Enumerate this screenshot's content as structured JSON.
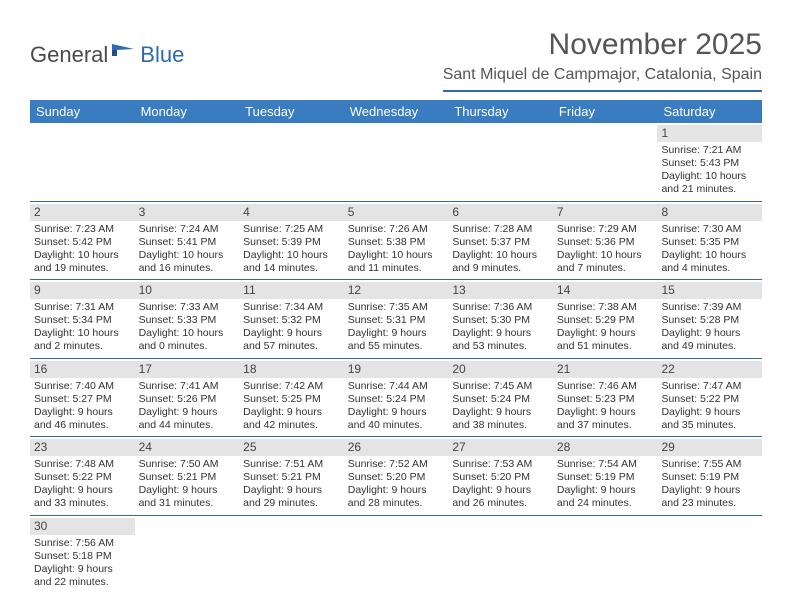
{
  "logo": {
    "textA": "General",
    "textB": "Blue"
  },
  "header": {
    "month_title": "November 2025",
    "location": "Sant Miquel de Campmajor, Catalonia, Spain"
  },
  "colors": {
    "header_bar": "#3a7cc0",
    "accent_line": "#2f6aad",
    "day_num_bg": "#e4e4e4",
    "text": "#333333",
    "title_text": "#555555"
  },
  "weekdays": [
    "Sunday",
    "Monday",
    "Tuesday",
    "Wednesday",
    "Thursday",
    "Friday",
    "Saturday"
  ],
  "weeks": [
    [
      null,
      null,
      null,
      null,
      null,
      null,
      {
        "n": "1",
        "sr": "Sunrise: 7:21 AM",
        "ss": "Sunset: 5:43 PM",
        "dl1": "Daylight: 10 hours",
        "dl2": "and 21 minutes."
      }
    ],
    [
      {
        "n": "2",
        "sr": "Sunrise: 7:23 AM",
        "ss": "Sunset: 5:42 PM",
        "dl1": "Daylight: 10 hours",
        "dl2": "and 19 minutes."
      },
      {
        "n": "3",
        "sr": "Sunrise: 7:24 AM",
        "ss": "Sunset: 5:41 PM",
        "dl1": "Daylight: 10 hours",
        "dl2": "and 16 minutes."
      },
      {
        "n": "4",
        "sr": "Sunrise: 7:25 AM",
        "ss": "Sunset: 5:39 PM",
        "dl1": "Daylight: 10 hours",
        "dl2": "and 14 minutes."
      },
      {
        "n": "5",
        "sr": "Sunrise: 7:26 AM",
        "ss": "Sunset: 5:38 PM",
        "dl1": "Daylight: 10 hours",
        "dl2": "and 11 minutes."
      },
      {
        "n": "6",
        "sr": "Sunrise: 7:28 AM",
        "ss": "Sunset: 5:37 PM",
        "dl1": "Daylight: 10 hours",
        "dl2": "and 9 minutes."
      },
      {
        "n": "7",
        "sr": "Sunrise: 7:29 AM",
        "ss": "Sunset: 5:36 PM",
        "dl1": "Daylight: 10 hours",
        "dl2": "and 7 minutes."
      },
      {
        "n": "8",
        "sr": "Sunrise: 7:30 AM",
        "ss": "Sunset: 5:35 PM",
        "dl1": "Daylight: 10 hours",
        "dl2": "and 4 minutes."
      }
    ],
    [
      {
        "n": "9",
        "sr": "Sunrise: 7:31 AM",
        "ss": "Sunset: 5:34 PM",
        "dl1": "Daylight: 10 hours",
        "dl2": "and 2 minutes."
      },
      {
        "n": "10",
        "sr": "Sunrise: 7:33 AM",
        "ss": "Sunset: 5:33 PM",
        "dl1": "Daylight: 10 hours",
        "dl2": "and 0 minutes."
      },
      {
        "n": "11",
        "sr": "Sunrise: 7:34 AM",
        "ss": "Sunset: 5:32 PM",
        "dl1": "Daylight: 9 hours",
        "dl2": "and 57 minutes."
      },
      {
        "n": "12",
        "sr": "Sunrise: 7:35 AM",
        "ss": "Sunset: 5:31 PM",
        "dl1": "Daylight: 9 hours",
        "dl2": "and 55 minutes."
      },
      {
        "n": "13",
        "sr": "Sunrise: 7:36 AM",
        "ss": "Sunset: 5:30 PM",
        "dl1": "Daylight: 9 hours",
        "dl2": "and 53 minutes."
      },
      {
        "n": "14",
        "sr": "Sunrise: 7:38 AM",
        "ss": "Sunset: 5:29 PM",
        "dl1": "Daylight: 9 hours",
        "dl2": "and 51 minutes."
      },
      {
        "n": "15",
        "sr": "Sunrise: 7:39 AM",
        "ss": "Sunset: 5:28 PM",
        "dl1": "Daylight: 9 hours",
        "dl2": "and 49 minutes."
      }
    ],
    [
      {
        "n": "16",
        "sr": "Sunrise: 7:40 AM",
        "ss": "Sunset: 5:27 PM",
        "dl1": "Daylight: 9 hours",
        "dl2": "and 46 minutes."
      },
      {
        "n": "17",
        "sr": "Sunrise: 7:41 AM",
        "ss": "Sunset: 5:26 PM",
        "dl1": "Daylight: 9 hours",
        "dl2": "and 44 minutes."
      },
      {
        "n": "18",
        "sr": "Sunrise: 7:42 AM",
        "ss": "Sunset: 5:25 PM",
        "dl1": "Daylight: 9 hours",
        "dl2": "and 42 minutes."
      },
      {
        "n": "19",
        "sr": "Sunrise: 7:44 AM",
        "ss": "Sunset: 5:24 PM",
        "dl1": "Daylight: 9 hours",
        "dl2": "and 40 minutes."
      },
      {
        "n": "20",
        "sr": "Sunrise: 7:45 AM",
        "ss": "Sunset: 5:24 PM",
        "dl1": "Daylight: 9 hours",
        "dl2": "and 38 minutes."
      },
      {
        "n": "21",
        "sr": "Sunrise: 7:46 AM",
        "ss": "Sunset: 5:23 PM",
        "dl1": "Daylight: 9 hours",
        "dl2": "and 37 minutes."
      },
      {
        "n": "22",
        "sr": "Sunrise: 7:47 AM",
        "ss": "Sunset: 5:22 PM",
        "dl1": "Daylight: 9 hours",
        "dl2": "and 35 minutes."
      }
    ],
    [
      {
        "n": "23",
        "sr": "Sunrise: 7:48 AM",
        "ss": "Sunset: 5:22 PM",
        "dl1": "Daylight: 9 hours",
        "dl2": "and 33 minutes."
      },
      {
        "n": "24",
        "sr": "Sunrise: 7:50 AM",
        "ss": "Sunset: 5:21 PM",
        "dl1": "Daylight: 9 hours",
        "dl2": "and 31 minutes."
      },
      {
        "n": "25",
        "sr": "Sunrise: 7:51 AM",
        "ss": "Sunset: 5:21 PM",
        "dl1": "Daylight: 9 hours",
        "dl2": "and 29 minutes."
      },
      {
        "n": "26",
        "sr": "Sunrise: 7:52 AM",
        "ss": "Sunset: 5:20 PM",
        "dl1": "Daylight: 9 hours",
        "dl2": "and 28 minutes."
      },
      {
        "n": "27",
        "sr": "Sunrise: 7:53 AM",
        "ss": "Sunset: 5:20 PM",
        "dl1": "Daylight: 9 hours",
        "dl2": "and 26 minutes."
      },
      {
        "n": "28",
        "sr": "Sunrise: 7:54 AM",
        "ss": "Sunset: 5:19 PM",
        "dl1": "Daylight: 9 hours",
        "dl2": "and 24 minutes."
      },
      {
        "n": "29",
        "sr": "Sunrise: 7:55 AM",
        "ss": "Sunset: 5:19 PM",
        "dl1": "Daylight: 9 hours",
        "dl2": "and 23 minutes."
      }
    ],
    [
      {
        "n": "30",
        "sr": "Sunrise: 7:56 AM",
        "ss": "Sunset: 5:18 PM",
        "dl1": "Daylight: 9 hours",
        "dl2": "and 22 minutes."
      },
      null,
      null,
      null,
      null,
      null,
      null
    ]
  ]
}
